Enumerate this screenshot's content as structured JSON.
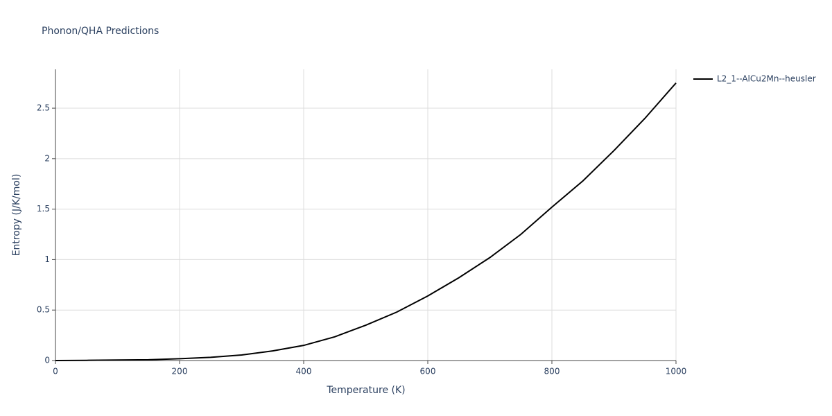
{
  "chart_data": {
    "type": "line",
    "title": "Phonon/QHA Predictions",
    "x_label": "Temperature (K)",
    "y_label": "Entropy (J/K/mol)",
    "x": [
      0,
      50,
      100,
      150,
      200,
      250,
      300,
      350,
      400,
      450,
      500,
      550,
      600,
      650,
      700,
      750,
      800,
      850,
      900,
      950,
      1000
    ],
    "series": [
      {
        "name": "L2_1--AlCu2Mn--heusler",
        "color": "#000000",
        "values": [
          0,
          0.002,
          0.005,
          0.008,
          0.018,
          0.032,
          0.055,
          0.095,
          0.15,
          0.235,
          0.35,
          0.48,
          0.64,
          0.82,
          1.02,
          1.25,
          1.52,
          1.78,
          2.08,
          2.4,
          2.75
        ]
      }
    ],
    "xlim": [
      0,
      1000
    ],
    "xticks": [
      0,
      200,
      400,
      600,
      800,
      1000
    ],
    "ylim": [
      0,
      2.885
    ],
    "yticks": [
      0,
      0.5,
      1,
      1.5,
      2,
      2.5
    ],
    "grid": true,
    "legend": "right"
  }
}
